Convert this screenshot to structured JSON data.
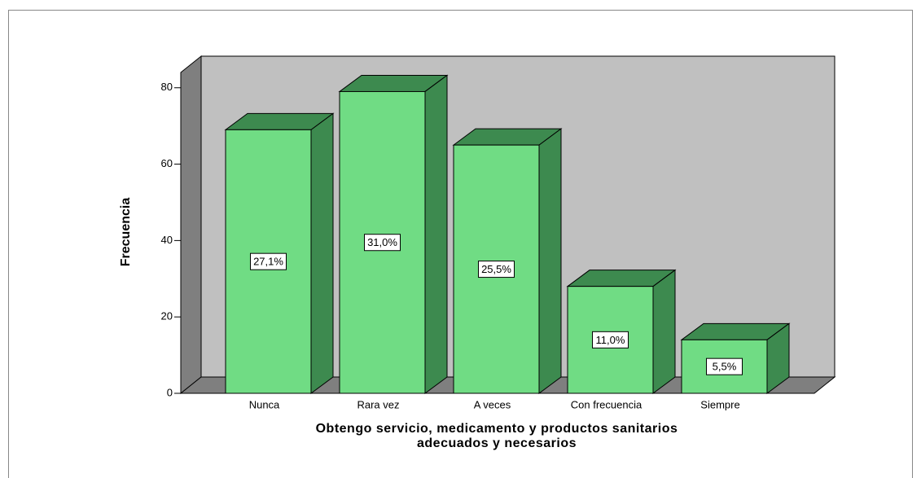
{
  "chart_data": {
    "type": "bar3d",
    "categories": [
      "Nunca",
      "Rara vez",
      "A veces",
      "Con frecuencia",
      "Siempre"
    ],
    "values": [
      69,
      79,
      65,
      28,
      14
    ],
    "percentages": [
      27.1,
      31.0,
      25.5,
      11.0,
      5.5
    ],
    "percentage_labels": [
      "27,1%",
      "31,0%",
      "25,5%",
      "11,0%",
      "5,5%"
    ],
    "color": "#70dc84",
    "side_color": "#3d8a4f",
    "ylabel": "Frecuencia",
    "xlabel": [
      "Obtengo servicio, medicamento y productos sanitarios",
      "adecuados y necesarios"
    ],
    "ylim": [
      0,
      84
    ],
    "yticks": [
      0,
      20,
      40,
      60,
      80
    ]
  }
}
